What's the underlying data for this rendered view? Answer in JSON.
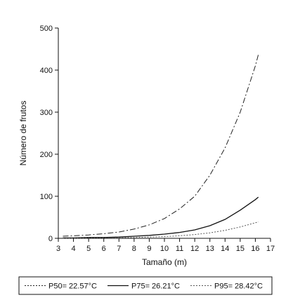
{
  "chart_data": {
    "type": "line",
    "title": "",
    "xlabel": "Tamaño (m)",
    "ylabel": "Número de frutos",
    "xlim": [
      3,
      17
    ],
    "ylim": [
      0,
      500
    ],
    "x_ticks": [
      3,
      4,
      5,
      6,
      7,
      8,
      9,
      10,
      11,
      12,
      13,
      14,
      15,
      16,
      17
    ],
    "y_ticks": [
      0,
      100,
      200,
      300,
      400,
      500
    ],
    "grid": false,
    "legend_position": "bottom",
    "series": [
      {
        "name": "P50= 22.57°C",
        "style": "dash-dot",
        "color": "#222222",
        "x": [
          3.3,
          4,
          5,
          6,
          7,
          8,
          9,
          10,
          11,
          12,
          13,
          14,
          15,
          16,
          16.2
        ],
        "y": [
          5,
          6,
          8,
          11,
          15,
          22,
          32,
          47,
          70,
          100,
          150,
          215,
          300,
          410,
          437
        ]
      },
      {
        "name": "P75= 26.21°C",
        "style": "solid",
        "color": "#111111",
        "x": [
          3.3,
          4,
          5,
          6,
          7,
          8,
          9,
          10,
          11,
          12,
          13,
          14,
          15,
          16,
          16.2
        ],
        "y": [
          1,
          1,
          2,
          2,
          3,
          5,
          7,
          10,
          14,
          20,
          30,
          45,
          67,
          92,
          98
        ]
      },
      {
        "name": "P95= 28.42°C",
        "style": "dotted",
        "color": "#555555",
        "x": [
          3.3,
          4,
          5,
          6,
          7,
          8,
          9,
          10,
          11,
          12,
          13,
          14,
          15,
          16,
          16.2
        ],
        "y": [
          0,
          0,
          1,
          1,
          1,
          2,
          3,
          4,
          6,
          9,
          13,
          19,
          27,
          37,
          39
        ]
      }
    ]
  }
}
